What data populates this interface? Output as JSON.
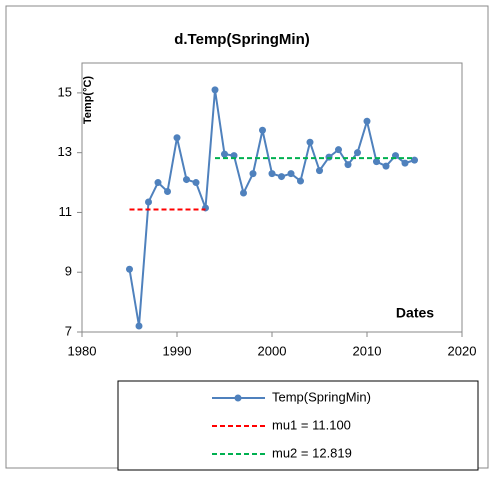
{
  "chart_data": {
    "type": "line",
    "title": "d.Temp(SpringMin)",
    "x_label": "Dates",
    "y_label": "Temp(°C)",
    "series": [
      {
        "name": "Temp(SpringMin)",
        "color": "#4f81bd",
        "style": "solid",
        "marker": true,
        "x": [
          1985,
          1986,
          1987,
          1988,
          1989,
          1990,
          1991,
          1992,
          1993,
          1994,
          1995,
          1996,
          1997,
          1998,
          1999,
          2000,
          2001,
          2002,
          2003,
          2004,
          2005,
          2006,
          2007,
          2008,
          2009,
          2010,
          2011,
          2012,
          2013,
          2014,
          2015
        ],
        "values": [
          9.1,
          7.2,
          11.35,
          12.0,
          11.7,
          13.5,
          12.1,
          12.0,
          11.15,
          15.1,
          12.95,
          12.9,
          11.65,
          12.3,
          13.75,
          12.3,
          12.2,
          12.3,
          12.05,
          13.35,
          12.4,
          12.85,
          13.1,
          12.6,
          13.0,
          14.05,
          12.7,
          12.55,
          12.9,
          12.65,
          12.75
        ]
      },
      {
        "name": "mu1 = 11.100",
        "color": "#ff0000",
        "style": "dashed",
        "marker": false,
        "x": [
          1985,
          1993
        ],
        "values": [
          11.1,
          11.1
        ]
      },
      {
        "name": "mu2 = 12.819",
        "color": "#00b050",
        "style": "dashed",
        "marker": false,
        "x": [
          1994,
          2015
        ],
        "values": [
          12.819,
          12.819
        ]
      }
    ],
    "xlim": [
      1980,
      2020
    ],
    "xticks": [
      1980,
      1990,
      2000,
      2010,
      2020
    ],
    "ylim": [
      7,
      16
    ],
    "yticks": [
      7,
      9,
      11,
      13,
      15
    ],
    "grid": false,
    "legend": "bottom"
  }
}
